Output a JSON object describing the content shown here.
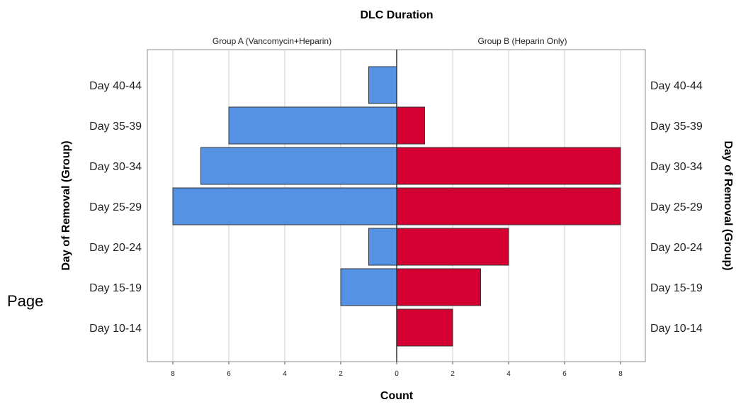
{
  "page_word": "Page",
  "chart_data": {
    "type": "bar",
    "title": "DLC Duration",
    "xlabel": "Count",
    "ylabel": "Day of Removal (Group)",
    "categories": [
      "Day 40-44",
      "Day 35-39",
      "Day 30-34",
      "Day 25-29",
      "Day 20-24",
      "Day 15-19",
      "Day 10-14"
    ],
    "series": [
      {
        "name": "Group A (Vancomycin+Heparin)",
        "values": [
          1,
          6,
          7,
          8,
          1,
          2,
          0
        ],
        "color": "#5592e4",
        "side": "left"
      },
      {
        "name": "Group B (Heparin Only)",
        "values": [
          0,
          1,
          8,
          8,
          4,
          3,
          2
        ],
        "color": "#d40031",
        "side": "right"
      }
    ],
    "xticks": [
      8,
      6,
      4,
      2,
      0,
      2,
      4,
      6,
      8
    ],
    "xlim": [
      0,
      8
    ],
    "grid": true,
    "orientation": "population-pyramid"
  }
}
